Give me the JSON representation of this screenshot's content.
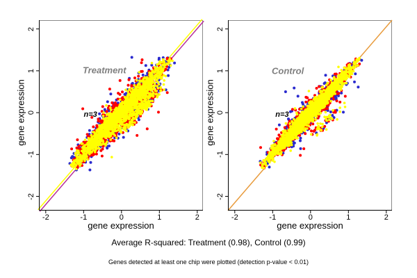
{
  "chart_data": {
    "type": "scatter",
    "description": "Two-panel replicate-vs-mean gene expression scatter plots, 3 replicates per panel (blue, red, yellow points) clustered along the identity diagonal",
    "n_replicates": 3,
    "replicate_colors": [
      "#2a2ace",
      "#ff0000",
      "#ffff00"
    ],
    "frame_color": "#8a8a8a",
    "axis_color": "#000000",
    "panels": [
      {
        "title": "Treatment",
        "annotation": "n=3",
        "xlabel": "gene expression",
        "ylabel": "gene expression",
        "xlim": [
          -2.18,
          2.15
        ],
        "ylim": [
          -2.34,
          2.21
        ],
        "xticks": [
          -2,
          -1,
          0,
          1,
          2
        ],
        "yticks": [
          -2,
          -1,
          0,
          1,
          2
        ],
        "r_squared": 0.98,
        "title_pos": {
          "x": -0.45,
          "y": 1.02
        },
        "annotation_pos": {
          "x": -0.82,
          "y": -0.05
        },
        "diagonal_lines": [
          {
            "color": "#ffff00",
            "shift": -1.2
          },
          {
            "color": "#b5309a",
            "shift": 1.2
          }
        ],
        "cloud": {
          "seed": 1013,
          "extent": 1.3,
          "t_mean": -0.05,
          "t_sd": 0.62,
          "series": [
            {
              "name": "replicate-blue",
              "color": "#2a2ace",
              "count": 650,
              "width": 0.155,
              "radius": 2.0,
              "outlier_rate": 0.05
            },
            {
              "name": "replicate-red",
              "color": "#ff0000",
              "count": 950,
              "width": 0.145,
              "radius": 2.0,
              "outlier_rate": 0.04
            },
            {
              "name": "replicate-yellow",
              "color": "#ffff00",
              "count": 1700,
              "width": 0.105,
              "radius": 1.8,
              "outlier_rate": 0.01
            }
          ],
          "sub_lobe": {
            "t_mean": 0.3,
            "t_sd": 0.28,
            "offset": -0.3,
            "fraction": 0.1
          }
        }
      },
      {
        "title": "Control",
        "annotation": "n=3",
        "xlabel": "gene expression",
        "ylabel": "gene expression",
        "xlim": [
          -2.18,
          2.15
        ],
        "ylim": [
          -2.34,
          2.21
        ],
        "xticks": [
          -2,
          -1,
          0,
          1,
          2
        ],
        "yticks": [
          -2,
          -1,
          0,
          1,
          2
        ],
        "r_squared": 0.99,
        "title_pos": {
          "x": -0.6,
          "y": 1.0
        },
        "annotation_pos": {
          "x": -0.75,
          "y": -0.05
        },
        "diagonal_lines": [
          {
            "color": "#e89b3c",
            "shift": 0
          }
        ],
        "cloud": {
          "seed": 2027,
          "extent": 1.3,
          "t_mean": -0.05,
          "t_sd": 0.58,
          "series": [
            {
              "name": "replicate-blue",
              "color": "#2a2ace",
              "count": 500,
              "width": 0.12,
              "radius": 2.0,
              "outlier_rate": 0.05
            },
            {
              "name": "replicate-red",
              "color": "#ff0000",
              "count": 800,
              "width": 0.1,
              "radius": 2.0,
              "outlier_rate": 0.03
            },
            {
              "name": "replicate-yellow",
              "color": "#ffff00",
              "count": 1700,
              "width": 0.075,
              "radius": 1.8,
              "outlier_rate": 0.015
            }
          ],
          "sub_lobe": {
            "t_mean": 0.1,
            "t_sd": 0.18,
            "offset": -0.45,
            "fraction": 0.02
          }
        }
      }
    ]
  },
  "footer": {
    "line1": "Average R-squared: Treatment (0.98), Control (0.99)",
    "line2": "Genes detected at least one chip were plotted (detection p-value < 0.01)"
  }
}
